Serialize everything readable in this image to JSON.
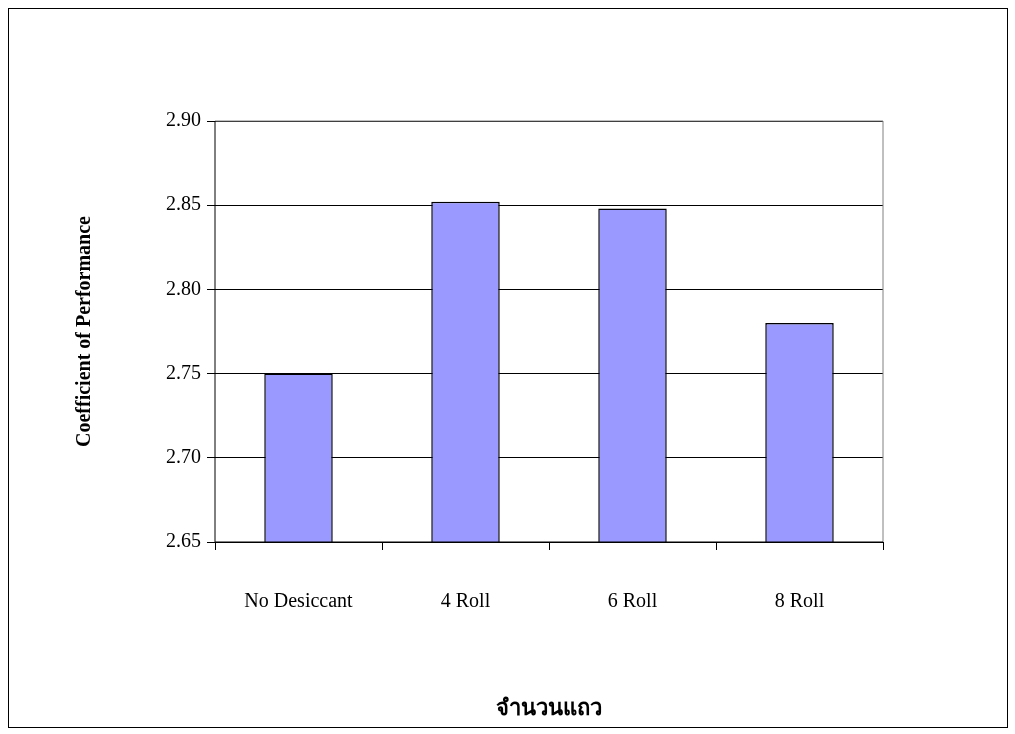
{
  "chart_data": {
    "type": "bar",
    "xlabel": "จำนวนแถว",
    "ylabel": "Coefficient of Performance",
    "categories": [
      "No Desiccant",
      "4 Roll",
      "6 Roll",
      "8 Roll"
    ],
    "values": [
      2.75,
      2.852,
      2.848,
      2.78
    ],
    "color": "#9999ff",
    "ylim": [
      2.65,
      2.9
    ],
    "yticks": [
      {
        "value": 2.65,
        "label": "2.65"
      },
      {
        "value": 2.7,
        "label": "2.70"
      },
      {
        "value": 2.75,
        "label": "2.75"
      },
      {
        "value": 2.8,
        "label": "2.80"
      },
      {
        "value": 2.85,
        "label": "2.85"
      },
      {
        "value": 2.9,
        "label": "2.90"
      }
    ],
    "grid": "y",
    "legend": false
  }
}
